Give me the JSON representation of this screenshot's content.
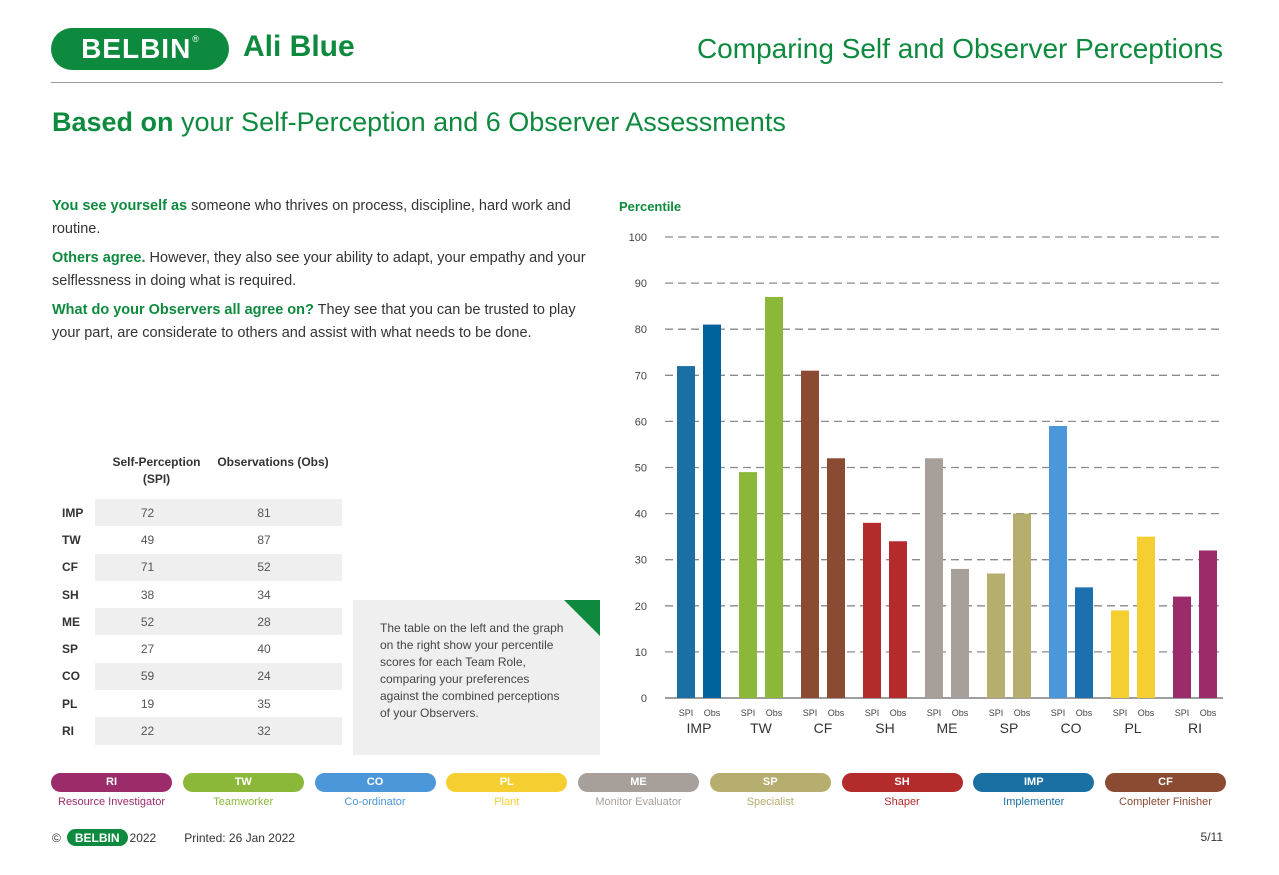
{
  "header": {
    "logo": "BELBIN",
    "name": "Ali Blue",
    "title": "Comparing Self and Observer Perceptions"
  },
  "section": {
    "bold": "Based on",
    "rest": " your Self-Perception and 6 Observer Assessments"
  },
  "narrative": [
    {
      "lead": "You see yourself as",
      "text": " someone who thrives on process, discipline, hard work and routine."
    },
    {
      "lead": "Others agree.",
      "text": " However, they also see your ability to adapt, your empathy and your selflessness in doing what is required."
    },
    {
      "lead": "What do your Observers all agree on?",
      "text": " They see that you can be trusted to play your part, are considerate to others and assist with what needs to be done."
    }
  ],
  "table": {
    "header_spi": "Self-Perception (SPI)",
    "header_obs": "Observations (Obs)",
    "rows": [
      {
        "code": "IMP",
        "spi": "72",
        "obs": "81"
      },
      {
        "code": "TW",
        "spi": "49",
        "obs": "87"
      },
      {
        "code": "CF",
        "spi": "71",
        "obs": "52"
      },
      {
        "code": "SH",
        "spi": "38",
        "obs": "34"
      },
      {
        "code": "ME",
        "spi": "52",
        "obs": "28"
      },
      {
        "code": "SP",
        "spi": "27",
        "obs": "40"
      },
      {
        "code": "CO",
        "spi": "59",
        "obs": "24"
      },
      {
        "code": "PL",
        "spi": "19",
        "obs": "35"
      },
      {
        "code": "RI",
        "spi": "22",
        "obs": "32"
      }
    ]
  },
  "note": "The table on the left and the graph on the right show your percentile scores for each Team Role, comparing your preferences against the combined perceptions of your Observers.",
  "chart_data": {
    "type": "bar",
    "ylabel": "Percentile",
    "ylim": [
      0,
      100
    ],
    "yticks": [
      0,
      10,
      20,
      30,
      40,
      50,
      60,
      70,
      80,
      90,
      100
    ],
    "grid": "dashed horizontal",
    "bar_labels": [
      "SPI",
      "Obs"
    ],
    "categories": [
      "IMP",
      "TW",
      "CF",
      "SH",
      "ME",
      "SP",
      "CO",
      "PL",
      "RI"
    ],
    "series": [
      {
        "name": "SPI",
        "values": [
          72,
          49,
          71,
          38,
          52,
          27,
          59,
          19,
          22
        ]
      },
      {
        "name": "Obs",
        "values": [
          81,
          87,
          52,
          34,
          28,
          40,
          24,
          35,
          32
        ]
      }
    ],
    "colors": {
      "IMP": [
        "#1a6fa3",
        "#00639b"
      ],
      "TW": [
        "#8cb83a",
        "#8cb83a"
      ],
      "CF": [
        "#8b4a32",
        "#8b4a32"
      ],
      "SH": [
        "#b32b2b",
        "#b32b2b"
      ],
      "ME": [
        "#a7a09a",
        "#a7a09a"
      ],
      "SP": [
        "#b5ae6e",
        "#b5ae6e"
      ],
      "CO": [
        "#4b97d9",
        "#1d70b0"
      ],
      "PL": [
        "#f5cf32",
        "#f5cf32"
      ],
      "RI": [
        "#9c2b6b",
        "#9c2b6b"
      ]
    }
  },
  "legend": [
    {
      "code": "RI",
      "label": "Resource Investigator",
      "color": "#9c2b6b"
    },
    {
      "code": "TW",
      "label": "Teamworker",
      "color": "#8cb83a"
    },
    {
      "code": "CO",
      "label": "Co-ordinator",
      "color": "#4b97d9"
    },
    {
      "code": "PL",
      "label": "Plant",
      "color": "#f5cf32"
    },
    {
      "code": "ME",
      "label": "Monitor Evaluator",
      "color": "#a7a09a"
    },
    {
      "code": "SP",
      "label": "Specialist",
      "color": "#b5ae6e"
    },
    {
      "code": "SH",
      "label": "Shaper",
      "color": "#b32b2b"
    },
    {
      "code": "IMP",
      "label": "Implementer",
      "color": "#1a6fa3"
    },
    {
      "code": "CF",
      "label": "Completer Finisher",
      "color": "#8b4a32"
    }
  ],
  "footer": {
    "copyright": "©",
    "logo": "BELBIN",
    "year": "2022",
    "printed": "Printed: 26 Jan 2022",
    "page": "5/11"
  }
}
